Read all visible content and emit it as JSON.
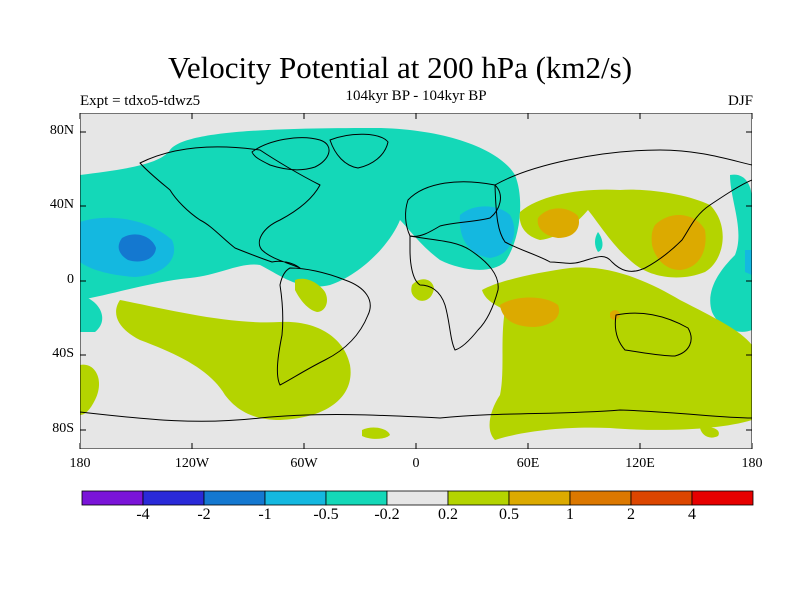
{
  "title": "Velocity Potential at 200 hPa (km2/s)",
  "subtitle": "104kyr BP - 104kyr BP",
  "experiment": "Expt = tdxo5-tdwz5",
  "season": "DJF",
  "lat_ticks": [
    "80N",
    "40N",
    "0",
    "40S",
    "80S"
  ],
  "lon_ticks": [
    "180",
    "120W",
    "60W",
    "0",
    "60E",
    "120E",
    "180"
  ],
  "colorbar": {
    "labels": [
      "-4",
      "-2",
      "-1",
      "-0.5",
      "-0.2",
      "0.2",
      "0.5",
      "1",
      "2",
      "4"
    ],
    "colors": [
      "#7a14d8",
      "#2a2ad8",
      "#1478d0",
      "#14b8e0",
      "#14d8b8",
      "#e6e6e6",
      "#b4d400",
      "#dcaa00",
      "#dc7800",
      "#dc4600",
      "#e60000"
    ]
  }
}
